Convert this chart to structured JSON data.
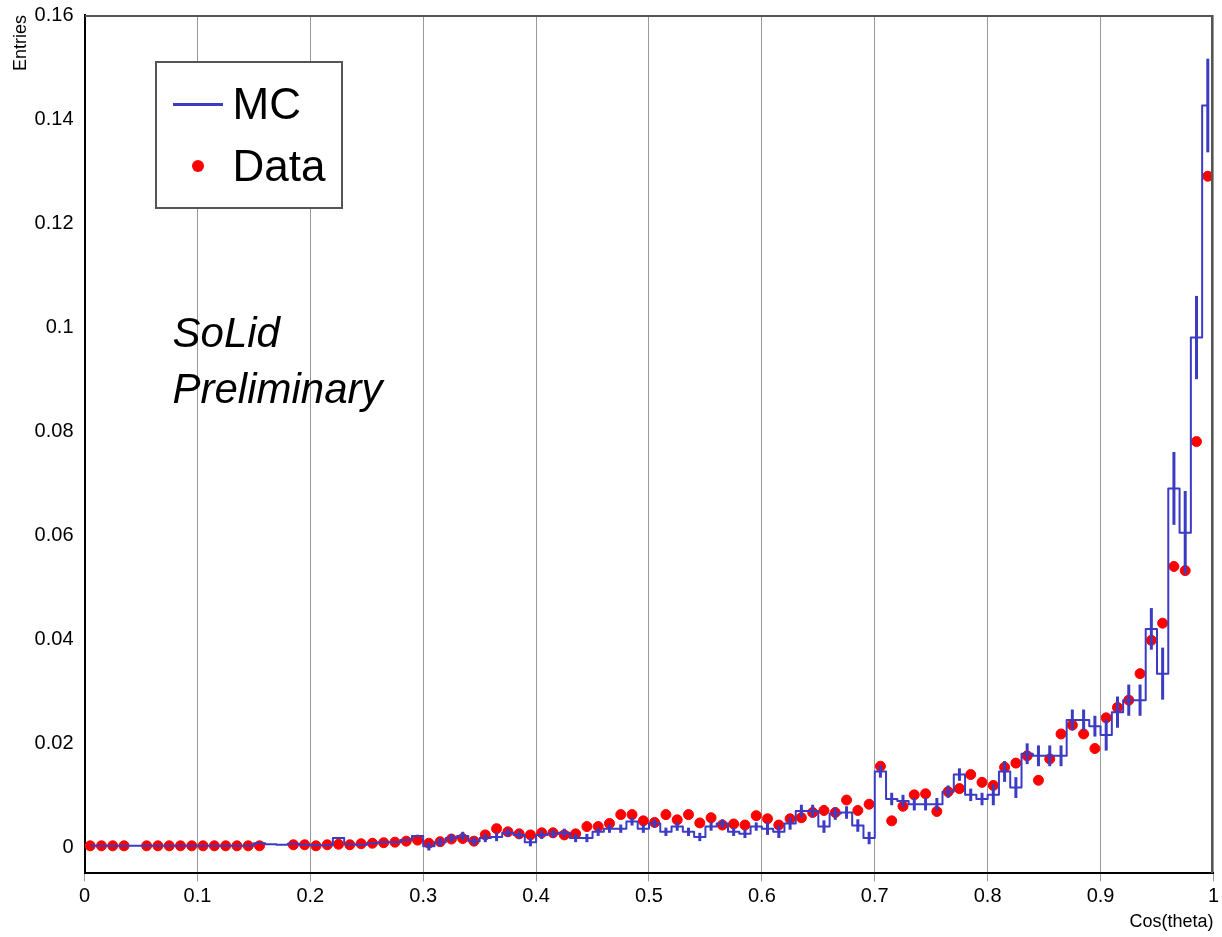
{
  "chart_data": {
    "type": "step",
    "xlabel": "Cos(theta)",
    "ylabel": "Entries",
    "legend": "top left",
    "grid": "x",
    "annotations": [
      "SoLid Preliminary"
    ],
    "xlim": [
      0,
      1
    ],
    "xticks": [
      0,
      0.1,
      0.2,
      0.3,
      0.4,
      0.5,
      0.6,
      0.7,
      0.8,
      0.9,
      1
    ],
    "ylim": [
      -0.005,
      0.16
    ],
    "yticks": [
      0,
      0.02,
      0.04,
      0.06,
      0.08,
      0.1,
      0.12,
      0.14,
      0.16
    ],
    "x": [
      0.005,
      0.015,
      0.025,
      0.035,
      0.045,
      0.055,
      0.065,
      0.075,
      0.085,
      0.095,
      0.105,
      0.115,
      0.125,
      0.135,
      0.145,
      0.155,
      0.165,
      0.175,
      0.185,
      0.195,
      0.205,
      0.215,
      0.225,
      0.235,
      0.245,
      0.255,
      0.265,
      0.275,
      0.285,
      0.295,
      0.305,
      0.315,
      0.325,
      0.335,
      0.345,
      0.355,
      0.365,
      0.375,
      0.385,
      0.395,
      0.405,
      0.415,
      0.425,
      0.435,
      0.445,
      0.455,
      0.465,
      0.475,
      0.485,
      0.495,
      0.505,
      0.515,
      0.525,
      0.535,
      0.545,
      0.555,
      0.565,
      0.575,
      0.585,
      0.595,
      0.605,
      0.615,
      0.625,
      0.635,
      0.645,
      0.655,
      0.665,
      0.675,
      0.685,
      0.695,
      0.705,
      0.715,
      0.725,
      0.735,
      0.745,
      0.755,
      0.765,
      0.775,
      0.785,
      0.795,
      0.805,
      0.815,
      0.825,
      0.835,
      0.845,
      0.855,
      0.865,
      0.875,
      0.885,
      0.895,
      0.905,
      0.915,
      0.925,
      0.935,
      0.945,
      0.955,
      0.965,
      0.975,
      0.985,
      0.995
    ],
    "series": [
      {
        "name": "MC",
        "color": "#3b3bc4",
        "values": [
          0.0003,
          0.0003,
          0.0003,
          0.0003,
          0.0003,
          0.0003,
          0.0003,
          0.0003,
          0.0003,
          0.0003,
          0.0003,
          0.0003,
          0.0003,
          0.0003,
          0.0003,
          0.0008,
          0.0006,
          0.0005,
          0.0007,
          0.0005,
          0.0004,
          0.0004,
          0.0018,
          0.0006,
          0.0005,
          0.0008,
          0.001,
          0.001,
          0.0014,
          0.0022,
          0.0002,
          0.001,
          0.0018,
          0.0022,
          0.0012,
          0.0018,
          0.002,
          0.0028,
          0.0024,
          0.001,
          0.0024,
          0.0026,
          0.0028,
          0.0018,
          0.0018,
          0.003,
          0.0036,
          0.0036,
          0.005,
          0.0036,
          0.0046,
          0.003,
          0.004,
          0.003,
          0.002,
          0.004,
          0.0046,
          0.003,
          0.0026,
          0.004,
          0.0036,
          0.003,
          0.0046,
          0.007,
          0.007,
          0.004,
          0.0065,
          0.0067,
          0.0042,
          0.0018,
          0.0146,
          0.0093,
          0.0089,
          0.0083,
          0.0083,
          0.0083,
          0.0107,
          0.014,
          0.0101,
          0.0093,
          0.0101,
          0.0146,
          0.0115,
          0.018,
          0.0176,
          0.0176,
          0.0176,
          0.0245,
          0.0245,
          0.0233,
          0.0216,
          0.026,
          0.0283,
          0.0283,
          0.042,
          0.0334,
          0.069,
          0.0605,
          0.098,
          0.1426
        ],
        "errors": [
          null,
          null,
          null,
          null,
          null,
          null,
          null,
          null,
          null,
          null,
          null,
          null,
          null,
          null,
          null,
          null,
          null,
          null,
          null,
          null,
          null,
          null,
          null,
          null,
          null,
          null,
          null,
          null,
          null,
          null,
          0.0008,
          0.0008,
          0.0008,
          0.0008,
          0.0008,
          0.0008,
          0.0008,
          0.0008,
          0.0008,
          0.0008,
          0.0008,
          0.0008,
          0.0008,
          0.0008,
          0.0008,
          0.0008,
          0.0008,
          0.0008,
          0.0008,
          0.0008,
          0.0008,
          0.0008,
          0.0008,
          0.0008,
          0.0008,
          0.0008,
          0.0008,
          0.0008,
          0.0008,
          0.0008,
          0.0012,
          0.0012,
          0.0012,
          0.0012,
          0.0012,
          0.0012,
          0.0012,
          0.0012,
          0.0012,
          0.0012,
          0.0012,
          0.0012,
          0.0012,
          0.0012,
          0.0012,
          0.0012,
          0.0012,
          0.0012,
          0.0012,
          0.0012,
          0.002,
          0.002,
          0.002,
          0.002,
          0.002,
          0.002,
          0.002,
          0.002,
          0.002,
          0.002,
          0.003,
          0.003,
          0.003,
          0.003,
          0.004,
          0.005,
          0.007,
          0.008,
          0.008,
          0.009
        ]
      },
      {
        "name": "Data",
        "type": "scatter",
        "marker": "circle",
        "color": "#ff0000",
        "values": [
          0.0003,
          0.0003,
          0.0003,
          0.0003,
          null,
          0.0003,
          0.0003,
          0.0003,
          0.0003,
          0.0003,
          0.0003,
          0.0003,
          0.0003,
          0.0003,
          0.0003,
          0.0003,
          null,
          null,
          0.0005,
          0.0005,
          0.0003,
          0.0005,
          0.0006,
          0.0005,
          0.0007,
          0.0008,
          0.0009,
          0.001,
          0.0012,
          0.0014,
          0.0008,
          0.0011,
          0.0016,
          0.0017,
          0.0012,
          0.0024,
          0.0036,
          0.003,
          0.0026,
          0.0024,
          0.0028,
          0.0028,
          0.0024,
          0.0026,
          0.004,
          0.004,
          0.0046,
          0.0063,
          0.0063,
          0.0051,
          0.0048,
          0.0063,
          0.0053,
          0.0063,
          0.0047,
          0.0057,
          0.0043,
          0.0045,
          0.0043,
          0.0061,
          0.0055,
          0.0043,
          0.0055,
          0.0057,
          0.0067,
          0.0071,
          0.0067,
          0.0091,
          0.0071,
          0.0083,
          0.0156,
          0.0051,
          0.0079,
          0.0101,
          0.0103,
          0.0069,
          0.0107,
          0.0113,
          0.014,
          0.0125,
          0.0119,
          0.0154,
          0.0162,
          0.0176,
          0.0129,
          0.017,
          0.0218,
          0.0235,
          0.0218,
          0.019,
          0.0249,
          0.0269,
          0.0283,
          0.0334,
          0.0398,
          0.0431,
          0.054,
          0.0532,
          0.078,
          0.129
        ]
      }
    ]
  }
}
